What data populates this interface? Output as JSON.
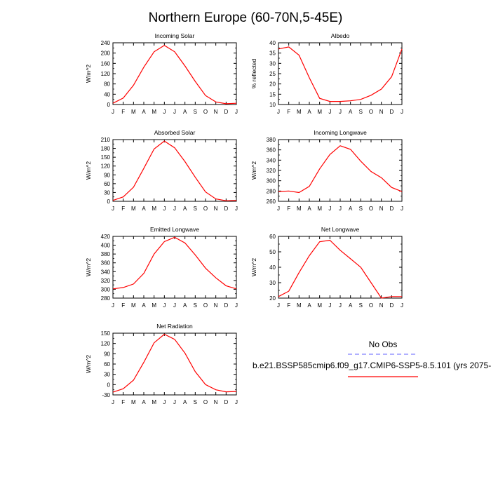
{
  "page_title": "Northern Europe (60-70N,5-45E)",
  "legend": {
    "obs_label": "No Obs",
    "model_label": "b.e21.BSSP585cmip6.f09_g17.CMIP6-SSP5-8.5.101 (yrs 2075-",
    "obs_color": "#8080ff",
    "model_color": "#ff0000"
  },
  "chart_data": [
    {
      "type": "line",
      "title": "Incoming Solar",
      "ylabel": "W/m^2",
      "ylim": [
        0,
        240
      ],
      "yticks": [
        0,
        40,
        80,
        120,
        160,
        200,
        240
      ],
      "x": [
        "J",
        "F",
        "M",
        "A",
        "M",
        "J",
        "J",
        "A",
        "S",
        "O",
        "N",
        "D",
        "J"
      ],
      "series": [
        {
          "color": "#ff0000",
          "values": [
            5,
            25,
            75,
            145,
            205,
            230,
            205,
            150,
            90,
            35,
            10,
            3,
            5
          ]
        }
      ]
    },
    {
      "type": "line",
      "title": "Albedo",
      "ylabel": "% reflected",
      "ylim": [
        10,
        40
      ],
      "yticks": [
        10,
        15,
        20,
        25,
        30,
        35,
        40
      ],
      "x": [
        "J",
        "F",
        "M",
        "A",
        "M",
        "J",
        "J",
        "A",
        "S",
        "O",
        "N",
        "D",
        "J"
      ],
      "series": [
        {
          "color": "#ff0000",
          "values": [
            37,
            38,
            34,
            23,
            13,
            11.5,
            11.5,
            11.8,
            12.5,
            14.5,
            17.5,
            23.5,
            37
          ]
        }
      ]
    },
    {
      "type": "line",
      "title": "Absorbed Solar",
      "ylabel": "W/m^2",
      "ylim": [
        0,
        210
      ],
      "yticks": [
        0,
        30,
        60,
        90,
        120,
        150,
        180,
        210
      ],
      "x": [
        "J",
        "F",
        "M",
        "A",
        "M",
        "J",
        "J",
        "A",
        "S",
        "O",
        "N",
        "D",
        "J"
      ],
      "series": [
        {
          "color": "#ff0000",
          "values": [
            3,
            15,
            48,
            112,
            178,
            205,
            182,
            135,
            82,
            32,
            8,
            2,
            3
          ]
        }
      ]
    },
    {
      "type": "line",
      "title": "Incoming Longwave",
      "ylabel": "W/m^2",
      "ylim": [
        260,
        380
      ],
      "yticks": [
        260,
        280,
        300,
        320,
        340,
        360,
        380
      ],
      "x": [
        "J",
        "F",
        "M",
        "A",
        "M",
        "J",
        "J",
        "A",
        "S",
        "O",
        "N",
        "D",
        "J"
      ],
      "series": [
        {
          "color": "#ff0000",
          "values": [
            279,
            280,
            277,
            289,
            323,
            351,
            368,
            361,
            338,
            318,
            306,
            287,
            279
          ]
        }
      ]
    },
    {
      "type": "line",
      "title": "Emitted Longwave",
      "ylabel": "W/m^2",
      "ylim": [
        280,
        420
      ],
      "yticks": [
        280,
        300,
        320,
        340,
        360,
        380,
        400,
        420
      ],
      "x": [
        "J",
        "F",
        "M",
        "A",
        "M",
        "J",
        "J",
        "A",
        "S",
        "O",
        "N",
        "D",
        "J"
      ],
      "series": [
        {
          "color": "#ff0000",
          "values": [
            301,
            304,
            312,
            336,
            380,
            408,
            418,
            405,
            378,
            348,
            326,
            308,
            301
          ]
        }
      ]
    },
    {
      "type": "line",
      "title": "Net Longwave",
      "ylabel": "W/m^2",
      "ylim": [
        20,
        60
      ],
      "yticks": [
        20,
        30,
        40,
        50,
        60
      ],
      "x": [
        "J",
        "F",
        "M",
        "A",
        "M",
        "J",
        "J",
        "A",
        "S",
        "O",
        "N",
        "D",
        "J"
      ],
      "series": [
        {
          "color": "#ff0000",
          "values": [
            21,
            24.5,
            36.5,
            47.5,
            56.5,
            57.5,
            51,
            45.5,
            40,
            30,
            20,
            21,
            21
          ]
        }
      ]
    },
    {
      "type": "line",
      "title": "Net Radiation",
      "ylabel": "W/m^2",
      "ylim": [
        -30,
        150
      ],
      "yticks": [
        -30,
        0,
        30,
        60,
        90,
        120,
        150
      ],
      "x": [
        "J",
        "F",
        "M",
        "A",
        "M",
        "J",
        "J",
        "A",
        "S",
        "O",
        "N",
        "D",
        "J"
      ],
      "series": [
        {
          "color": "#ff0000",
          "values": [
            -22,
            -12,
            13,
            65,
            122,
            147,
            132,
            92,
            38,
            0,
            -15,
            -21,
            -20
          ]
        }
      ]
    }
  ]
}
